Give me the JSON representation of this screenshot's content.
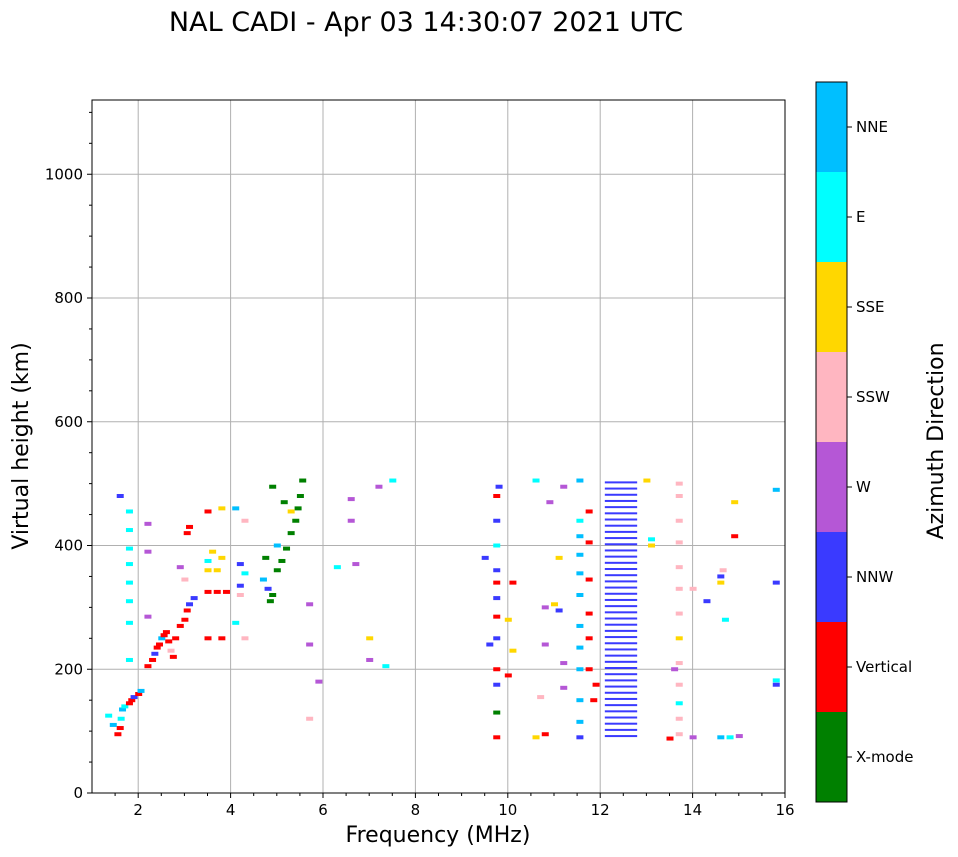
{
  "chart_data": {
    "type": "scatter",
    "title": "NAL CADI - Apr 03 14:30:07 2021 UTC",
    "xlabel": "Frequency (MHz)",
    "ylabel": "Virtual height (km)",
    "xlim": [
      1,
      16
    ],
    "ylim": [
      0,
      1120
    ],
    "xticks": [
      2,
      4,
      6,
      8,
      10,
      12,
      14,
      16
    ],
    "yticks": [
      0,
      200,
      400,
      600,
      800,
      1000
    ],
    "grid": true,
    "colorbar": {
      "label": "Azimuth Direction",
      "categories": [
        {
          "name": "X-mode",
          "color": "#008000"
        },
        {
          "name": "Vertical",
          "color": "#ff0000"
        },
        {
          "name": "NNW",
          "color": "#3a3aff"
        },
        {
          "name": "W",
          "color": "#b557d6"
        },
        {
          "name": "SSW",
          "color": "#ffb6c1"
        },
        {
          "name": "SSE",
          "color": "#ffd700"
        },
        {
          "name": "E",
          "color": "#00ffff"
        },
        {
          "name": "NNE",
          "color": "#00bfff"
        }
      ]
    },
    "points": [
      [
        1.35,
        125,
        "E"
      ],
      [
        1.45,
        110,
        "NNE"
      ],
      [
        1.55,
        95,
        "Vertical"
      ],
      [
        1.6,
        105,
        "Vertical"
      ],
      [
        1.62,
        120,
        "E"
      ],
      [
        1.65,
        135,
        "NNE"
      ],
      [
        1.7,
        140,
        "E"
      ],
      [
        1.8,
        145,
        "Vertical"
      ],
      [
        1.85,
        150,
        "Vertical"
      ],
      [
        1.9,
        155,
        "NNW"
      ],
      [
        2.0,
        160,
        "Vertical"
      ],
      [
        2.05,
        165,
        "NNE"
      ],
      [
        1.8,
        215,
        "E"
      ],
      [
        1.8,
        275,
        "E"
      ],
      [
        1.8,
        310,
        "E"
      ],
      [
        1.8,
        340,
        "E"
      ],
      [
        1.8,
        370,
        "E"
      ],
      [
        1.8,
        395,
        "E"
      ],
      [
        1.8,
        425,
        "E"
      ],
      [
        1.8,
        455,
        "E"
      ],
      [
        1.6,
        480,
        "NNW"
      ],
      [
        2.2,
        205,
        "Vertical"
      ],
      [
        2.3,
        215,
        "Vertical"
      ],
      [
        2.35,
        225,
        "NNW"
      ],
      [
        2.4,
        235,
        "Vertical"
      ],
      [
        2.45,
        240,
        "Vertical"
      ],
      [
        2.5,
        250,
        "NNE"
      ],
      [
        2.55,
        255,
        "Vertical"
      ],
      [
        2.6,
        260,
        "Vertical"
      ],
      [
        2.65,
        245,
        "Vertical"
      ],
      [
        2.7,
        230,
        "SSW"
      ],
      [
        2.75,
        220,
        "Vertical"
      ],
      [
        2.8,
        250,
        "Vertical"
      ],
      [
        2.9,
        270,
        "Vertical"
      ],
      [
        3.0,
        280,
        "Vertical"
      ],
      [
        3.05,
        295,
        "Vertical"
      ],
      [
        3.1,
        305,
        "NNW"
      ],
      [
        3.2,
        315,
        "NNW"
      ],
      [
        2.2,
        390,
        "W"
      ],
      [
        2.2,
        435,
        "W"
      ],
      [
        2.2,
        285,
        "W"
      ],
      [
        2.9,
        365,
        "W"
      ],
      [
        3.0,
        345,
        "SSW"
      ],
      [
        3.05,
        420,
        "Vertical"
      ],
      [
        3.1,
        430,
        "Vertical"
      ],
      [
        3.5,
        325,
        "Vertical"
      ],
      [
        3.7,
        325,
        "Vertical"
      ],
      [
        3.9,
        325,
        "Vertical"
      ],
      [
        3.5,
        250,
        "Vertical"
      ],
      [
        3.8,
        250,
        "Vertical"
      ],
      [
        3.5,
        360,
        "SSE"
      ],
      [
        3.7,
        360,
        "SSE"
      ],
      [
        3.5,
        375,
        "E"
      ],
      [
        3.8,
        380,
        "SSE"
      ],
      [
        3.6,
        390,
        "SSE"
      ],
      [
        3.5,
        455,
        "Vertical"
      ],
      [
        3.8,
        460,
        "SSE"
      ],
      [
        4.1,
        460,
        "NNE"
      ],
      [
        4.3,
        440,
        "SSW"
      ],
      [
        4.2,
        370,
        "NNW"
      ],
      [
        4.3,
        355,
        "E"
      ],
      [
        4.2,
        335,
        "NNW"
      ],
      [
        4.2,
        320,
        "SSW"
      ],
      [
        4.1,
        275,
        "E"
      ],
      [
        4.3,
        250,
        "SSW"
      ],
      [
        4.7,
        345,
        "NNE"
      ],
      [
        4.8,
        330,
        "NNW"
      ],
      [
        4.85,
        310,
        "X-mode"
      ],
      [
        4.9,
        320,
        "X-mode"
      ],
      [
        5.0,
        360,
        "X-mode"
      ],
      [
        5.1,
        375,
        "X-mode"
      ],
      [
        5.2,
        395,
        "X-mode"
      ],
      [
        5.3,
        420,
        "X-mode"
      ],
      [
        5.4,
        440,
        "X-mode"
      ],
      [
        5.45,
        460,
        "X-mode"
      ],
      [
        5.5,
        480,
        "X-mode"
      ],
      [
        5.55,
        505,
        "X-mode"
      ],
      [
        4.9,
        495,
        "X-mode"
      ],
      [
        5.15,
        470,
        "X-mode"
      ],
      [
        5.3,
        455,
        "SSE"
      ],
      [
        4.75,
        380,
        "X-mode"
      ],
      [
        5.0,
        400,
        "NNE"
      ],
      [
        5.7,
        120,
        "SSW"
      ],
      [
        5.7,
        240,
        "W"
      ],
      [
        5.7,
        305,
        "W"
      ],
      [
        5.9,
        180,
        "W"
      ],
      [
        6.3,
        365,
        "E"
      ],
      [
        6.6,
        440,
        "W"
      ],
      [
        6.6,
        475,
        "W"
      ],
      [
        6.7,
        370,
        "W"
      ],
      [
        7.0,
        215,
        "W"
      ],
      [
        7.0,
        250,
        "SSE"
      ],
      [
        7.35,
        205,
        "E"
      ],
      [
        7.2,
        495,
        "W"
      ],
      [
        7.5,
        505,
        "E"
      ],
      [
        9.75,
        90,
        "Vertical"
      ],
      [
        9.75,
        130,
        "X-mode"
      ],
      [
        9.75,
        175,
        "NNW"
      ],
      [
        9.75,
        200,
        "Vertical"
      ],
      [
        9.75,
        250,
        "NNW"
      ],
      [
        9.75,
        285,
        "Vertical"
      ],
      [
        9.75,
        315,
        "NNW"
      ],
      [
        9.75,
        340,
        "Vertical"
      ],
      [
        9.75,
        360,
        "NNW"
      ],
      [
        9.75,
        400,
        "E"
      ],
      [
        9.75,
        440,
        "NNW"
      ],
      [
        9.75,
        480,
        "Vertical"
      ],
      [
        9.8,
        495,
        "NNW"
      ],
      [
        9.5,
        380,
        "NNW"
      ],
      [
        9.6,
        240,
        "NNW"
      ],
      [
        10.0,
        280,
        "SSE"
      ],
      [
        10.0,
        190,
        "Vertical"
      ],
      [
        10.1,
        230,
        "SSE"
      ],
      [
        10.1,
        340,
        "Vertical"
      ],
      [
        10.6,
        90,
        "SSE"
      ],
      [
        10.8,
        95,
        "Vertical"
      ],
      [
        10.7,
        155,
        "SSW"
      ],
      [
        10.8,
        240,
        "W"
      ],
      [
        10.8,
        300,
        "W"
      ],
      [
        10.9,
        470,
        "W"
      ],
      [
        10.6,
        505,
        "E"
      ],
      [
        11.2,
        170,
        "W"
      ],
      [
        11.2,
        210,
        "W"
      ],
      [
        11.1,
        295,
        "NNW"
      ],
      [
        11.1,
        380,
        "SSE"
      ],
      [
        11.2,
        495,
        "W"
      ],
      [
        11.0,
        305,
        "SSE"
      ],
      [
        11.55,
        90,
        "NNW"
      ],
      [
        11.55,
        115,
        "NNE"
      ],
      [
        11.55,
        150,
        "NNE"
      ],
      [
        11.55,
        200,
        "NNE"
      ],
      [
        11.55,
        235,
        "NNE"
      ],
      [
        11.55,
        270,
        "NNE"
      ],
      [
        11.55,
        320,
        "NNE"
      ],
      [
        11.55,
        355,
        "NNE"
      ],
      [
        11.55,
        385,
        "NNE"
      ],
      [
        11.55,
        415,
        "NNE"
      ],
      [
        11.55,
        440,
        "E"
      ],
      [
        11.55,
        505,
        "NNE"
      ],
      [
        11.75,
        200,
        "Vertical"
      ],
      [
        11.75,
        250,
        "Vertical"
      ],
      [
        11.75,
        290,
        "Vertical"
      ],
      [
        11.75,
        345,
        "Vertical"
      ],
      [
        11.75,
        405,
        "Vertical"
      ],
      [
        11.75,
        455,
        "Vertical"
      ],
      [
        11.9,
        175,
        "Vertical"
      ],
      [
        11.85,
        150,
        "Vertical"
      ],
      [
        13.0,
        505,
        "SSE"
      ],
      [
        13.1,
        410,
        "E"
      ],
      [
        13.1,
        400,
        "SSE"
      ],
      [
        13.7,
        95,
        "SSW"
      ],
      [
        13.7,
        120,
        "SSW"
      ],
      [
        13.7,
        145,
        "E"
      ],
      [
        13.7,
        175,
        "SSW"
      ],
      [
        13.7,
        210,
        "SSW"
      ],
      [
        13.7,
        250,
        "SSE"
      ],
      [
        13.7,
        290,
        "SSW"
      ],
      [
        13.7,
        330,
        "SSW"
      ],
      [
        13.7,
        365,
        "SSW"
      ],
      [
        13.7,
        405,
        "SSW"
      ],
      [
        13.7,
        440,
        "SSW"
      ],
      [
        13.7,
        480,
        "SSW"
      ],
      [
        13.7,
        500,
        "SSW"
      ],
      [
        13.5,
        88,
        "Vertical"
      ],
      [
        13.6,
        200,
        "W"
      ],
      [
        14.0,
        90,
        "W"
      ],
      [
        14.0,
        330,
        "SSW"
      ],
      [
        14.3,
        310,
        "NNW"
      ],
      [
        14.6,
        90,
        "NNE"
      ],
      [
        14.8,
        90,
        "E"
      ],
      [
        15.0,
        92,
        "W"
      ],
      [
        14.7,
        280,
        "E"
      ],
      [
        14.6,
        350,
        "NNW"
      ],
      [
        14.65,
        360,
        "SSW"
      ],
      [
        14.6,
        340,
        "SSE"
      ],
      [
        14.9,
        415,
        "Vertical"
      ],
      [
        14.9,
        470,
        "SSE"
      ],
      [
        15.8,
        175,
        "NNW"
      ],
      [
        15.8,
        182,
        "E"
      ],
      [
        15.8,
        340,
        "NNW"
      ],
      [
        15.8,
        490,
        "NNE"
      ]
    ],
    "bars": [
      [
        12.1,
        12.8,
        92,
        510,
        "NNW"
      ]
    ]
  }
}
